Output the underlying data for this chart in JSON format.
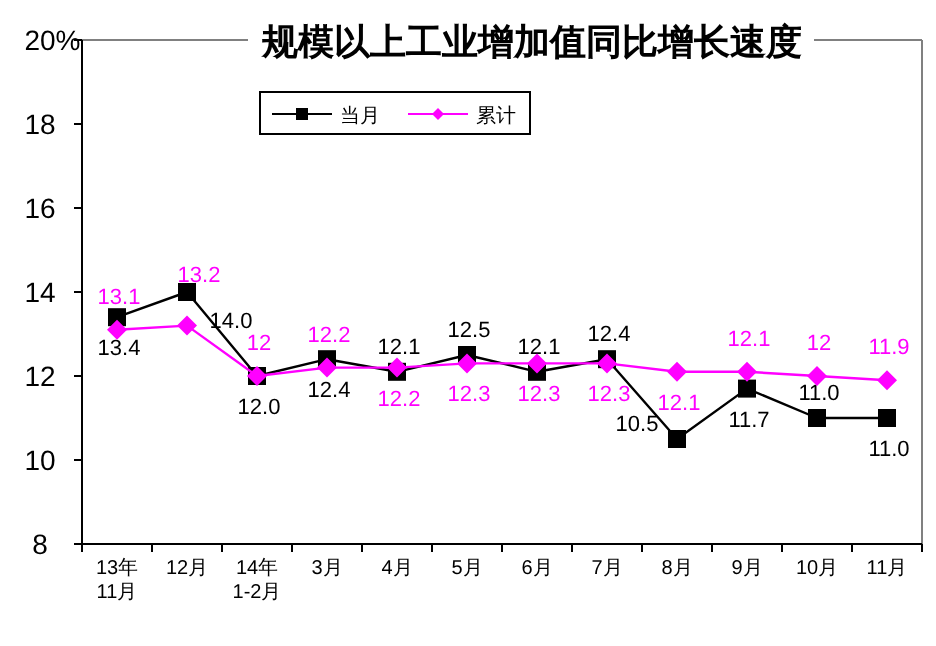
{
  "chart_data": {
    "type": "line",
    "title": "规模以上工业增加值同比增长速度",
    "ylabel": "%",
    "categories": [
      "13年11月",
      "12月",
      "14年1-2月",
      "3月",
      "4月",
      "5月",
      "6月",
      "7月",
      "8月",
      "9月",
      "10月",
      "11月"
    ],
    "ylim": [
      8,
      20
    ],
    "yticks": [
      8,
      10,
      12,
      14,
      16,
      18,
      20
    ],
    "grid": false,
    "legend": "top left",
    "line_style": "solid",
    "series": [
      {
        "name": "当月",
        "color": "#000000",
        "marker": "square",
        "values": [
          13.4,
          14.0,
          12.0,
          12.4,
          12.1,
          12.5,
          12.1,
          12.4,
          10.5,
          11.7,
          11.0,
          11.0
        ],
        "value_labels": [
          "13.4",
          "14.0",
          "12.0",
          "12.4",
          "12.1",
          "12.5",
          "12.1",
          "12.4",
          "10.5",
          "11.7",
          "11.0",
          "11.0"
        ]
      },
      {
        "name": "累计",
        "color": "#ff00ff",
        "marker": "diamond",
        "values": [
          13.1,
          13.2,
          12,
          12.2,
          12.2,
          12.3,
          12.3,
          12.3,
          12.1,
          12.1,
          12,
          11.9
        ],
        "value_labels": [
          "13.1",
          "13.2",
          "12",
          "12.2",
          "12.2",
          "12.3",
          "12.3",
          "12.3",
          "12.1",
          "12.1",
          "12",
          "11.9"
        ]
      }
    ]
  }
}
